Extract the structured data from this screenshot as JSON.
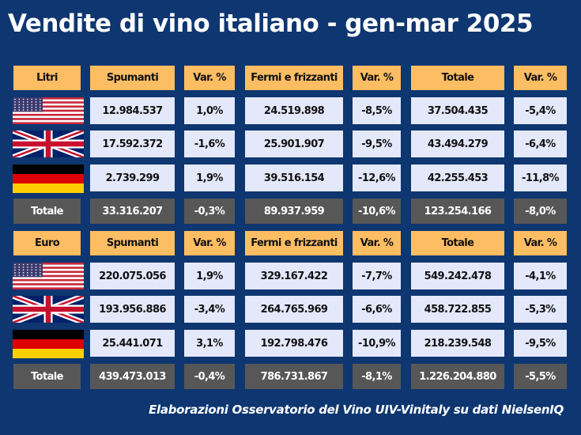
{
  "title": "Vendite di vino italiano - gen-mar 2025",
  "colors": {
    "background": "#0e3670",
    "header": "#fcbd63",
    "value_cell": "#e4e8fb",
    "total_cell": "#575757"
  },
  "tables": [
    {
      "headers": [
        "Litri",
        "Spumanti",
        "Var. %",
        "Fermi e frizzanti",
        "Var. %",
        "Totale",
        "Var. %"
      ],
      "rows": [
        {
          "flag": "usa-flag-icon",
          "values": [
            "12.984.537",
            "1,0%",
            "24.519.898",
            "-8,5%",
            "37.504.435",
            "-5,4%"
          ]
        },
        {
          "flag": "uk-flag-icon",
          "values": [
            "17.592.372",
            "-1,6%",
            "25.901.907",
            "-9,5%",
            "43.494.279",
            "-6,4%"
          ]
        },
        {
          "flag": "germany-flag-icon",
          "values": [
            "2.739.299",
            "1,9%",
            "39.516.154",
            "-12,6%",
            "42.255.453",
            "-11,8%"
          ]
        }
      ],
      "total": [
        "Totale",
        "33.316.207",
        "-0,3%",
        "89.937.959",
        "-10,6%",
        "123.254.166",
        "-8,0%"
      ]
    },
    {
      "headers": [
        "Euro",
        "Spumanti",
        "Var. %",
        "Fermi e frizzanti",
        "Var. %",
        "Totale",
        "Var. %"
      ],
      "rows": [
        {
          "flag": "usa-flag-icon",
          "values": [
            "220.075.056",
            "1,9%",
            "329.167.422",
            "-7,7%",
            "549.242.478",
            "-4,1%"
          ]
        },
        {
          "flag": "uk-flag-icon",
          "values": [
            "193.956.886",
            "-3,4%",
            "264.765.969",
            "-6,6%",
            "458.722.855",
            "-5,3%"
          ]
        },
        {
          "flag": "germany-flag-icon",
          "values": [
            "25.441.071",
            "3,1%",
            "192.798.476",
            "-10,9%",
            "218.239.548",
            "-9,5%"
          ]
        }
      ],
      "total": [
        "Totale",
        "439.473.013",
        "-0,4%",
        "786.731.867",
        "-8,1%",
        "1.226.204.880",
        "-5,5%"
      ]
    }
  ],
  "footer": "Elaborazioni Osservatorio del Vino UIV-Vinitaly su dati NielsenIQ"
}
